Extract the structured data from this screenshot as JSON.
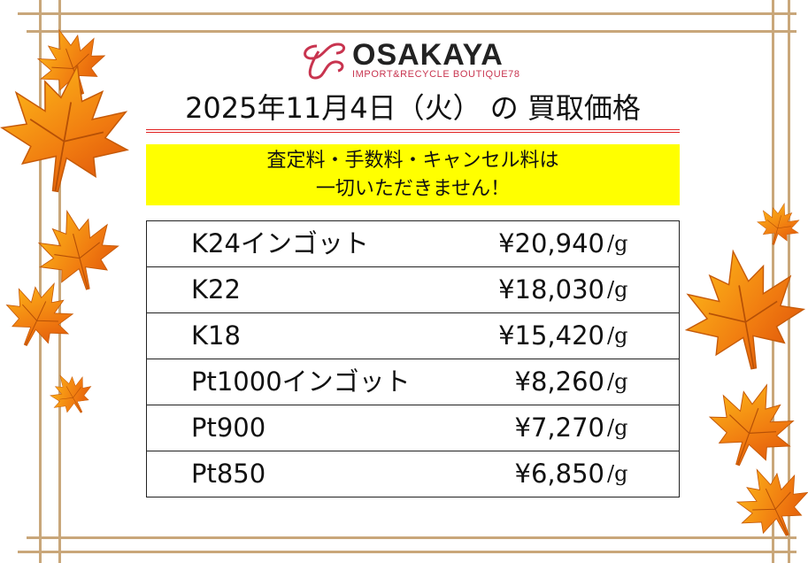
{
  "logo": {
    "name": "OSAKAYA",
    "tagline": "IMPORT&RECYCLE BOUTIQUE78",
    "brand_color": "#c8344f"
  },
  "title": "2025年11月4日（火） の 買取価格",
  "notice": {
    "line1": "査定料・手数料・キャンセル料は",
    "line2": "一切いただきません！",
    "bg_color": "#ffff00"
  },
  "prices": [
    {
      "name": "K24インゴット",
      "price": "¥20,940",
      "unit": "/g"
    },
    {
      "name": "K22",
      "price": "¥18,030",
      "unit": "/g"
    },
    {
      "name": "K18",
      "price": "¥15,420",
      "unit": "/g"
    },
    {
      "name": "Pt1000インゴット",
      "price": "¥8,260",
      "unit": "/g"
    },
    {
      "name": "Pt900",
      "price": "¥7,270",
      "unit": "/g"
    },
    {
      "name": "Pt850",
      "price": "¥6,850",
      "unit": "/g"
    }
  ],
  "decoration": {
    "icon": "maple-leaf-icon",
    "frame_color": "#c9a77a",
    "leaf_color": "#f07a10"
  }
}
